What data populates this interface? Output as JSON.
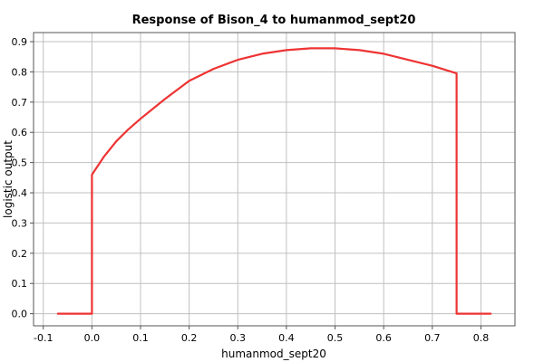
{
  "chart_data": {
    "type": "line",
    "title": "Response of Bison_4 to humanmod_sept20",
    "xlabel": "humanmod_sept20",
    "ylabel": "logistic output",
    "xlim": [
      -0.12,
      0.87
    ],
    "ylim": [
      -0.04,
      0.93
    ],
    "xticks": [
      -0.1,
      0.0,
      0.1,
      0.2,
      0.3,
      0.4,
      0.5,
      0.6,
      0.7,
      0.8
    ],
    "xtick_labels": [
      "-0.1",
      "0.0",
      "0.1",
      "0.2",
      "0.3",
      "0.4",
      "0.5",
      "0.6",
      "0.7",
      "0.8"
    ],
    "yticks": [
      0.0,
      0.1,
      0.2,
      0.3,
      0.4,
      0.5,
      0.6,
      0.7,
      0.8,
      0.9
    ],
    "ytick_labels": [
      "0.0",
      "0.1",
      "0.2",
      "0.3",
      "0.4",
      "0.5",
      "0.6",
      "0.7",
      "0.8",
      "0.9"
    ],
    "grid": true,
    "series": [
      {
        "color": "#ee3333",
        "x": [
          -0.07,
          0.0,
          0.0,
          0.025,
          0.05,
          0.075,
          0.1,
          0.15,
          0.2,
          0.25,
          0.3,
          0.35,
          0.4,
          0.45,
          0.5,
          0.55,
          0.6,
          0.65,
          0.7,
          0.75,
          0.75,
          0.82
        ],
        "y": [
          0.0,
          0.0,
          0.46,
          0.52,
          0.57,
          0.61,
          0.645,
          0.71,
          0.77,
          0.81,
          0.84,
          0.86,
          0.872,
          0.878,
          0.878,
          0.872,
          0.86,
          0.84,
          0.82,
          0.795,
          0.0,
          0.0
        ]
      }
    ]
  }
}
